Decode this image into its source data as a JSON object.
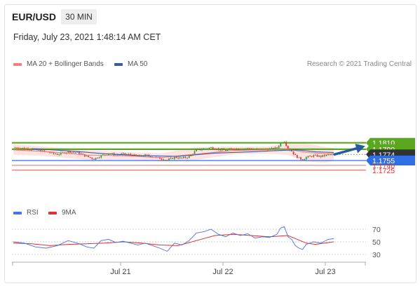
{
  "header": {
    "symbol": "EUR/USD",
    "timeframe": "30 MIN",
    "datetime": "Friday, July 23, 2021 1:48:14 AM CET"
  },
  "legend": {
    "ma20": "MA 20 + Bollinger Bands",
    "ma50": "MA 50",
    "copyright": "Research © 2021 Trading Central",
    "rsi": "RSI",
    "ma9": "9MA"
  },
  "colors": {
    "resistance": "#5aa81e",
    "support": "#2f6fe6",
    "support_secondary": "#e23c3c",
    "current": "#333333",
    "arrow": "#275aa0",
    "ma20": "#f08080",
    "ma50": "#3a5c9e",
    "bollinger_fill": "#fde3e3",
    "rsi": "#4a72e8",
    "ma9": "#e03030"
  },
  "chart_data": [
    {
      "type": "candlestick",
      "title": "EUR/USD 30 MIN",
      "x_ticks": [
        "Jul 21",
        "Jul 22",
        "Jul 23"
      ],
      "levels": [
        {
          "value": 1.181,
          "label": "1.1810",
          "kind": "resistance"
        },
        {
          "value": 1.179,
          "label": "1.1790",
          "kind": "resistance"
        },
        {
          "value": 1.1774,
          "label": "1.1774",
          "kind": "current"
        },
        {
          "value": 1.1755,
          "label": "1.1755",
          "kind": "support"
        },
        {
          "value": 1.174,
          "label": "1.1740",
          "kind": "support_secondary"
        },
        {
          "value": 1.1725,
          "label": "1.1725",
          "kind": "support_secondary"
        }
      ],
      "price_path": [
        [
          0,
          1.1795
        ],
        [
          6,
          1.1793
        ],
        [
          12,
          1.1788
        ],
        [
          18,
          1.1782
        ],
        [
          24,
          1.1774
        ],
        [
          30,
          1.1783
        ],
        [
          36,
          1.1778
        ],
        [
          40,
          1.1768
        ],
        [
          44,
          1.176
        ],
        [
          48,
          1.177
        ],
        [
          52,
          1.1777
        ],
        [
          56,
          1.1772
        ],
        [
          60,
          1.1775
        ],
        [
          64,
          1.1773
        ],
        [
          68,
          1.1768
        ],
        [
          72,
          1.1771
        ],
        [
          76,
          1.1767
        ],
        [
          80,
          1.1762
        ],
        [
          84,
          1.1756
        ],
        [
          88,
          1.1765
        ],
        [
          92,
          1.1762
        ],
        [
          96,
          1.1767
        ],
        [
          100,
          1.1787
        ],
        [
          104,
          1.1791
        ],
        [
          108,
          1.1795
        ],
        [
          112,
          1.179
        ],
        [
          116,
          1.1786
        ],
        [
          120,
          1.1792
        ],
        [
          124,
          1.179
        ],
        [
          128,
          1.1792
        ],
        [
          132,
          1.1789
        ],
        [
          136,
          1.179
        ],
        [
          140,
          1.179
        ],
        [
          144,
          1.1794
        ],
        [
          146,
          1.1809
        ],
        [
          148,
          1.1815
        ],
        [
          150,
          1.1792
        ],
        [
          152,
          1.1784
        ],
        [
          154,
          1.177
        ],
        [
          156,
          1.1762
        ],
        [
          158,
          1.1758
        ],
        [
          160,
          1.1765
        ],
        [
          164,
          1.177
        ],
        [
          168,
          1.1768
        ],
        [
          172,
          1.1773
        ],
        [
          175,
          1.1774
        ]
      ],
      "ma20": [
        [
          0,
          1.1788
        ],
        [
          20,
          1.1782
        ],
        [
          40,
          1.1772
        ],
        [
          60,
          1.177
        ],
        [
          80,
          1.1764
        ],
        [
          100,
          1.1775
        ],
        [
          120,
          1.1786
        ],
        [
          140,
          1.1788
        ],
        [
          150,
          1.179
        ],
        [
          160,
          1.178
        ],
        [
          170,
          1.1777
        ],
        [
          175,
          1.1776
        ]
      ],
      "ma50": [
        [
          10,
          1.1792
        ],
        [
          30,
          1.1785
        ],
        [
          50,
          1.1776
        ],
        [
          70,
          1.177
        ],
        [
          90,
          1.1768
        ],
        [
          110,
          1.1778
        ],
        [
          130,
          1.1782
        ],
        [
          145,
          1.1786
        ],
        [
          155,
          1.1788
        ],
        [
          165,
          1.1782
        ],
        [
          175,
          1.178
        ]
      ],
      "bollinger_upper": [
        [
          0,
          1.1805
        ],
        [
          20,
          1.1797
        ],
        [
          40,
          1.1787
        ],
        [
          60,
          1.1782
        ],
        [
          80,
          1.1777
        ],
        [
          100,
          1.1796
        ],
        [
          120,
          1.1798
        ],
        [
          140,
          1.1799
        ],
        [
          150,
          1.181
        ],
        [
          160,
          1.1808
        ],
        [
          170,
          1.1797
        ],
        [
          175,
          1.1794
        ]
      ],
      "bollinger_lower": [
        [
          0,
          1.1773
        ],
        [
          20,
          1.1768
        ],
        [
          40,
          1.1757
        ],
        [
          60,
          1.1758
        ],
        [
          80,
          1.1753
        ],
        [
          100,
          1.1757
        ],
        [
          120,
          1.1774
        ],
        [
          140,
          1.1777
        ],
        [
          150,
          1.1772
        ],
        [
          160,
          1.1752
        ],
        [
          170,
          1.1748
        ],
        [
          175,
          1.1754
        ]
      ],
      "projection": {
        "from": 1.1774,
        "to": 1.181
      }
    },
    {
      "type": "line",
      "title": "RSI",
      "ylim": [
        20,
        80
      ],
      "y_ticks": [
        "70",
        "50",
        "30"
      ],
      "series": [
        {
          "name": "RSI",
          "values": [
            [
              0,
              50
            ],
            [
              6,
              48
            ],
            [
              12,
              42
            ],
            [
              18,
              40
            ],
            [
              24,
              44
            ],
            [
              30,
              52
            ],
            [
              36,
              47
            ],
            [
              40,
              42
            ],
            [
              44,
              40
            ],
            [
              48,
              52
            ],
            [
              52,
              54
            ],
            [
              56,
              49
            ],
            [
              60,
              51
            ],
            [
              64,
              48
            ],
            [
              68,
              45
            ],
            [
              72,
              48
            ],
            [
              76,
              44
            ],
            [
              80,
              40
            ],
            [
              84,
              35
            ],
            [
              88,
              48
            ],
            [
              92,
              45
            ],
            [
              96,
              52
            ],
            [
              100,
              64
            ],
            [
              104,
              66
            ],
            [
              108,
              70
            ],
            [
              112,
              62
            ],
            [
              116,
              58
            ],
            [
              120,
              64
            ],
            [
              124,
              60
            ],
            [
              128,
              63
            ],
            [
              132,
              56
            ],
            [
              136,
              58
            ],
            [
              140,
              57
            ],
            [
              144,
              62
            ],
            [
              146,
              72
            ],
            [
              148,
              74
            ],
            [
              150,
              58
            ],
            [
              152,
              54
            ],
            [
              154,
              44
            ],
            [
              156,
              40
            ],
            [
              158,
              38
            ],
            [
              160,
              46
            ],
            [
              164,
              50
            ],
            [
              168,
              48
            ],
            [
              172,
              54
            ],
            [
              175,
              55
            ]
          ]
        },
        {
          "name": "9MA",
          "values": [
            [
              0,
              48
            ],
            [
              10,
              47
            ],
            [
              20,
              44
            ],
            [
              30,
              46
            ],
            [
              40,
              47
            ],
            [
              50,
              48
            ],
            [
              60,
              50
            ],
            [
              70,
              48
            ],
            [
              80,
              45
            ],
            [
              90,
              44
            ],
            [
              100,
              52
            ],
            [
              110,
              60
            ],
            [
              120,
              62
            ],
            [
              130,
              60
            ],
            [
              140,
              58
            ],
            [
              150,
              60
            ],
            [
              155,
              54
            ],
            [
              160,
              48
            ],
            [
              165,
              46
            ],
            [
              170,
              48
            ],
            [
              175,
              50
            ]
          ]
        }
      ]
    }
  ]
}
